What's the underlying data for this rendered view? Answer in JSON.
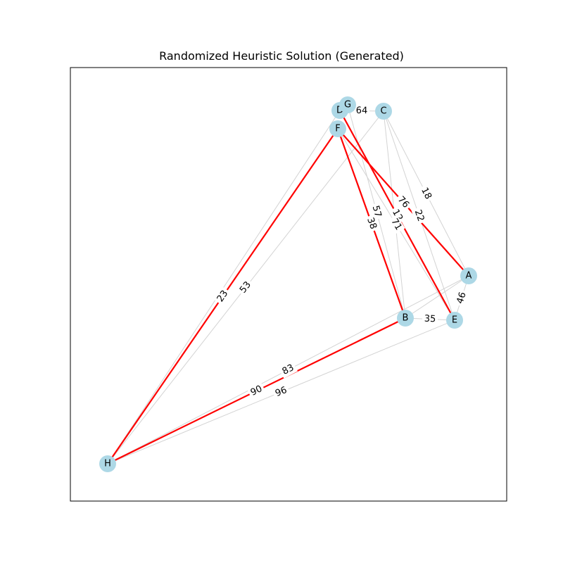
{
  "title": "Randomized Heuristic Solution (Generated)",
  "colors": {
    "node_fill": "#add8e6",
    "edge_default": "#d3d3d3",
    "edge_path": "#ff0000",
    "frame": "#000000"
  },
  "nodes": [
    "A",
    "B",
    "C",
    "D",
    "E",
    "F",
    "G",
    "H"
  ],
  "edges": [
    {
      "from": "C",
      "to": "A",
      "weight": "18",
      "path": false
    },
    {
      "from": "C",
      "to": "E",
      "weight": "22",
      "path": false
    },
    {
      "from": "C",
      "to": "B",
      "weight": "",
      "path": false
    },
    {
      "from": "C",
      "to": "H",
      "weight": "53",
      "path": false
    },
    {
      "from": "D",
      "to": "C",
      "weight": "64",
      "path": false
    },
    {
      "from": "G",
      "to": "B",
      "weight": "57",
      "path": false
    },
    {
      "from": "D",
      "to": "E",
      "weight": "12",
      "path": true
    },
    {
      "from": "D",
      "to": "H",
      "weight": "",
      "path": false
    },
    {
      "from": "F",
      "to": "A",
      "weight": "76",
      "path": true
    },
    {
      "from": "F",
      "to": "B",
      "weight": "38",
      "path": true
    },
    {
      "from": "F",
      "to": "E",
      "weight": "71",
      "path": false
    },
    {
      "from": "F",
      "to": "H",
      "weight": "23",
      "path": true
    },
    {
      "from": "A",
      "to": "B",
      "weight": "",
      "path": false
    },
    {
      "from": "A",
      "to": "H",
      "weight": "83",
      "path": false
    },
    {
      "from": "A",
      "to": "E",
      "weight": "46",
      "path": false
    },
    {
      "from": "B",
      "to": "E",
      "weight": "35",
      "path": false
    },
    {
      "from": "B",
      "to": "H",
      "weight": "90",
      "path": true
    },
    {
      "from": "E",
      "to": "H",
      "weight": "96",
      "path": false
    }
  ]
}
